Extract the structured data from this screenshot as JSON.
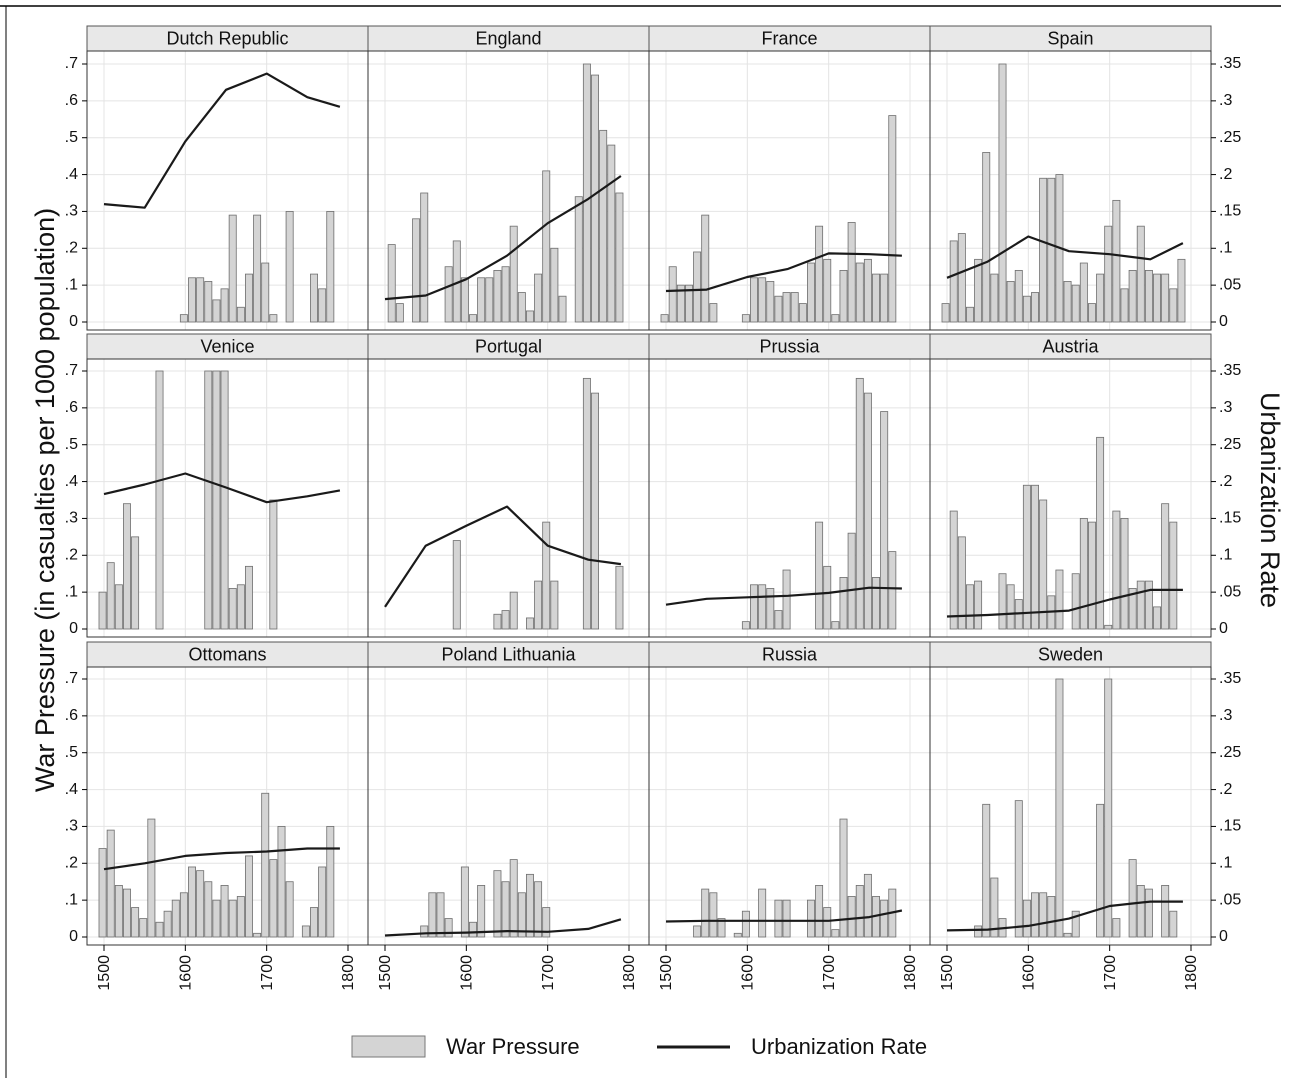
{
  "chart_data": {
    "type": "bar",
    "combo": "bar+line, dual y axes, 3x4 panel grid",
    "ylabel_left": "War Pressure (in casualties per 1000 population)",
    "ylabel_right": "Urbanization Rate",
    "left_axis": {
      "ylim": [
        0,
        0.7
      ],
      "ticks": [
        "0",
        ".1",
        ".2",
        ".3",
        ".4",
        ".5",
        ".6",
        ".7"
      ]
    },
    "right_axis": {
      "ylim": [
        0,
        0.35
      ],
      "ticks": [
        "0",
        ".05",
        ".1",
        ".15",
        ".2",
        ".25",
        ".3",
        ".35"
      ]
    },
    "x_axis": {
      "xlim": [
        1500,
        1800
      ],
      "ticks": [
        "1500",
        "1600",
        "1700",
        "1800"
      ]
    },
    "grid": true,
    "legend": {
      "position": "bottom",
      "items": [
        {
          "label": "War Pressure",
          "kind": "bar",
          "color": "#d4d4d4"
        },
        {
          "label": "Urbanization Rate",
          "kind": "line",
          "color": "#1a1a1a"
        }
      ]
    },
    "bar_years": [
      1500,
      1510,
      1520,
      1530,
      1540,
      1550,
      1560,
      1570,
      1580,
      1590,
      1600,
      1610,
      1620,
      1630,
      1640,
      1650,
      1660,
      1670,
      1680,
      1690,
      1700,
      1710,
      1720,
      1730,
      1740,
      1750,
      1760,
      1770,
      1780,
      1790
    ],
    "panels": [
      {
        "title": "Dutch Republic",
        "war_pressure": [
          0,
          0,
          0,
          0,
          0,
          0,
          0,
          0,
          0,
          0,
          0.02,
          0.12,
          0.12,
          0.11,
          0.06,
          0.09,
          0.29,
          0.04,
          0.13,
          0.29,
          0.16,
          0.02,
          0,
          0.3,
          0,
          0,
          0.13,
          0.09,
          0.3,
          0
        ],
        "urbanization": [
          [
            1500,
            0.16
          ],
          [
            1550,
            0.155
          ],
          [
            1600,
            0.245
          ],
          [
            1650,
            0.315
          ],
          [
            1700,
            0.337
          ],
          [
            1750,
            0.305
          ],
          [
            1790,
            0.292
          ]
        ]
      },
      {
        "title": "England",
        "war_pressure": [
          0,
          0.21,
          0.05,
          0,
          0.28,
          0.35,
          0,
          0,
          0.15,
          0.22,
          0.12,
          0.02,
          0.12,
          0.12,
          0.14,
          0.15,
          0.26,
          0.08,
          0.03,
          0.13,
          0.41,
          0.2,
          0.07,
          0,
          0.34,
          0.7,
          0.67,
          0.52,
          0.48,
          0.35
        ],
        "urbanization": [
          [
            1500,
            0.031
          ],
          [
            1550,
            0.036
          ],
          [
            1600,
            0.058
          ],
          [
            1650,
            0.09
          ],
          [
            1700,
            0.134
          ],
          [
            1750,
            0.167
          ],
          [
            1790,
            0.198
          ]
        ]
      },
      {
        "title": "France",
        "war_pressure": [
          0.02,
          0.15,
          0.1,
          0.1,
          0.19,
          0.29,
          0.05,
          0,
          0,
          0,
          0.02,
          0.12,
          0.12,
          0.11,
          0.07,
          0.08,
          0.08,
          0.05,
          0.16,
          0.26,
          0.17,
          0.02,
          0.14,
          0.27,
          0.16,
          0.17,
          0.13,
          0.13,
          0.56,
          0
        ],
        "urbanization": [
          [
            1500,
            0.042
          ],
          [
            1550,
            0.044
          ],
          [
            1600,
            0.061
          ],
          [
            1650,
            0.072
          ],
          [
            1700,
            0.093
          ],
          [
            1750,
            0.092
          ],
          [
            1790,
            0.09
          ]
        ]
      },
      {
        "title": "Spain",
        "war_pressure": [
          0.05,
          0.22,
          0.24,
          0.04,
          0.17,
          0.46,
          0.13,
          0.7,
          0.11,
          0.14,
          0.07,
          0.08,
          0.39,
          0.39,
          0.4,
          0.11,
          0.1,
          0.16,
          0.05,
          0.13,
          0.26,
          0.33,
          0.09,
          0.14,
          0.26,
          0.14,
          0.13,
          0.13,
          0.09,
          0.17
        ],
        "urbanization": [
          [
            1500,
            0.06
          ],
          [
            1550,
            0.082
          ],
          [
            1600,
            0.116
          ],
          [
            1650,
            0.096
          ],
          [
            1700,
            0.092
          ],
          [
            1750,
            0.085
          ],
          [
            1790,
            0.107
          ]
        ]
      },
      {
        "title": "Venice",
        "war_pressure": [
          0.1,
          0.18,
          0.12,
          0.34,
          0.25,
          0,
          0,
          0.7,
          0,
          0,
          0,
          0,
          0,
          0.7,
          0.7,
          0.7,
          0.11,
          0.12,
          0.17,
          0,
          0,
          0.35,
          0,
          0,
          0,
          0,
          0,
          0,
          0,
          0
        ],
        "urbanization": [
          [
            1500,
            0.183
          ],
          [
            1550,
            0.196
          ],
          [
            1600,
            0.211
          ],
          [
            1650,
            0.192
          ],
          [
            1700,
            0.172
          ],
          [
            1750,
            0.18
          ],
          [
            1790,
            0.188
          ]
        ]
      },
      {
        "title": "Portugal",
        "war_pressure": [
          0,
          0,
          0,
          0,
          0,
          0,
          0,
          0,
          0,
          0.24,
          0,
          0,
          0,
          0,
          0.04,
          0.05,
          0.1,
          0,
          0.03,
          0.13,
          0.29,
          0.13,
          0,
          0,
          0,
          0.68,
          0.64,
          0,
          0,
          0.17
        ],
        "urbanization": [
          [
            1500,
            0.03
          ],
          [
            1550,
            0.113
          ],
          [
            1600,
            0.14
          ],
          [
            1650,
            0.166
          ],
          [
            1700,
            0.113
          ],
          [
            1750,
            0.094
          ],
          [
            1790,
            0.088
          ]
        ]
      },
      {
        "title": "Prussia",
        "war_pressure": [
          0,
          0,
          0,
          0,
          0,
          0,
          0,
          0,
          0,
          0,
          0.02,
          0.12,
          0.12,
          0.11,
          0.05,
          0.16,
          0,
          0,
          0,
          0.29,
          0.17,
          0.02,
          0.14,
          0.26,
          0.68,
          0.64,
          0.14,
          0.59,
          0.21,
          0
        ],
        "urbanization": [
          [
            1500,
            0.033
          ],
          [
            1550,
            0.041
          ],
          [
            1600,
            0.043
          ],
          [
            1650,
            0.045
          ],
          [
            1700,
            0.049
          ],
          [
            1750,
            0.056
          ],
          [
            1790,
            0.055
          ]
        ]
      },
      {
        "title": "Austria",
        "war_pressure": [
          0,
          0.32,
          0.25,
          0.12,
          0.13,
          0,
          0,
          0.15,
          0.12,
          0.08,
          0.39,
          0.39,
          0.35,
          0.09,
          0.16,
          0,
          0.15,
          0.3,
          0.29,
          0.52,
          0.01,
          0.32,
          0.3,
          0.11,
          0.13,
          0.13,
          0.06,
          0.34,
          0.29,
          0
        ],
        "urbanization": [
          [
            1500,
            0.017
          ],
          [
            1550,
            0.019
          ],
          [
            1600,
            0.022
          ],
          [
            1650,
            0.025
          ],
          [
            1700,
            0.04
          ],
          [
            1750,
            0.053
          ],
          [
            1790,
            0.053
          ]
        ]
      },
      {
        "title": "Ottomans",
        "war_pressure": [
          0.24,
          0.29,
          0.14,
          0.13,
          0.08,
          0.05,
          0.32,
          0.04,
          0.07,
          0.1,
          0.12,
          0.19,
          0.18,
          0.15,
          0.1,
          0.14,
          0.1,
          0.11,
          0.22,
          0.01,
          0.39,
          0.21,
          0.3,
          0.15,
          0,
          0.03,
          0.08,
          0.19,
          0.3,
          0
        ],
        "urbanization": [
          [
            1500,
            0.092
          ],
          [
            1550,
            0.1
          ],
          [
            1600,
            0.11
          ],
          [
            1650,
            0.114
          ],
          [
            1700,
            0.116
          ],
          [
            1750,
            0.12
          ],
          [
            1790,
            0.12
          ]
        ]
      },
      {
        "title": "Poland Lithuania",
        "war_pressure": [
          0,
          0,
          0,
          0,
          0,
          0.03,
          0.12,
          0.12,
          0.05,
          0,
          0.19,
          0.04,
          0.14,
          0,
          0.18,
          0.15,
          0.21,
          0.12,
          0.17,
          0.15,
          0.08,
          0,
          0,
          0,
          0,
          0,
          0,
          0,
          0,
          0
        ],
        "urbanization": [
          [
            1500,
            0.002
          ],
          [
            1550,
            0.005
          ],
          [
            1600,
            0.006
          ],
          [
            1650,
            0.008
          ],
          [
            1700,
            0.007
          ],
          [
            1750,
            0.011
          ],
          [
            1790,
            0.024
          ]
        ]
      },
      {
        "title": "Russia",
        "war_pressure": [
          0,
          0,
          0,
          0,
          0.03,
          0.13,
          0.12,
          0.05,
          0,
          0.01,
          0.07,
          0,
          0.13,
          0,
          0.1,
          0.1,
          0,
          0,
          0.1,
          0.14,
          0.08,
          0.02,
          0.32,
          0.11,
          0.14,
          0.17,
          0.11,
          0.1,
          0.13,
          0
        ],
        "urbanization": [
          [
            1500,
            0.021
          ],
          [
            1550,
            0.022
          ],
          [
            1600,
            0.022
          ],
          [
            1650,
            0.022
          ],
          [
            1700,
            0.022
          ],
          [
            1750,
            0.027
          ],
          [
            1790,
            0.036
          ]
        ]
      },
      {
        "title": "Sweden",
        "war_pressure": [
          0,
          0,
          0,
          0,
          0.03,
          0.36,
          0.16,
          0.05,
          0,
          0.37,
          0.1,
          0.12,
          0.12,
          0.11,
          0.7,
          0.01,
          0.07,
          0,
          0,
          0.36,
          0.7,
          0.05,
          0,
          0.21,
          0.14,
          0.13,
          0,
          0.14,
          0.07,
          0
        ],
        "urbanization": [
          [
            1500,
            0.009
          ],
          [
            1550,
            0.01
          ],
          [
            1600,
            0.015
          ],
          [
            1650,
            0.025
          ],
          [
            1700,
            0.042
          ],
          [
            1750,
            0.048
          ],
          [
            1790,
            0.048
          ]
        ]
      }
    ]
  }
}
